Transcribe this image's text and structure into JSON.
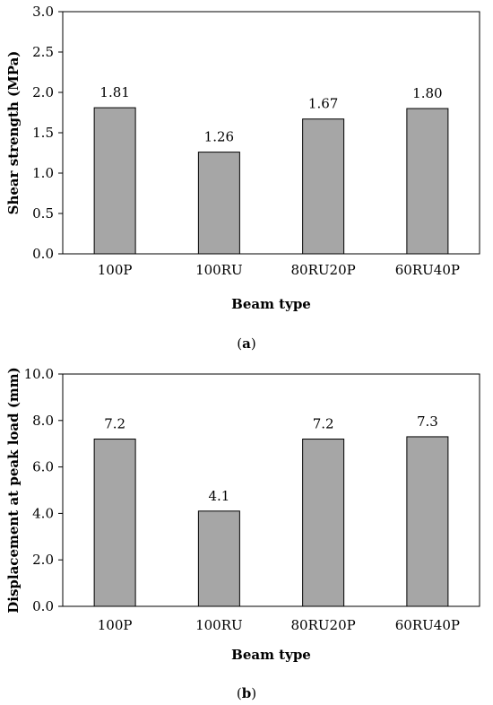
{
  "chart_data": [
    {
      "type": "bar",
      "panel_label": "a",
      "categories": [
        "100P",
        "100RU",
        "80RU20P",
        "60RU40P"
      ],
      "values": [
        1.81,
        1.26,
        1.67,
        1.8
      ],
      "data_labels": [
        "1.81",
        "1.26",
        "1.67",
        "1.80"
      ],
      "xlabel": "Beam type",
      "ylabel": "Shear strength (MPa)",
      "ylim": [
        0,
        3.0
      ],
      "yticks": [
        0.0,
        0.5,
        1.0,
        1.5,
        2.0,
        2.5,
        3.0
      ],
      "ytick_labels": [
        "0.0",
        "0.5",
        "1.0",
        "1.5",
        "2.0",
        "2.5",
        "3.0"
      ],
      "grid": false,
      "bar_color": "#a6a6a6"
    },
    {
      "type": "bar",
      "panel_label": "b",
      "categories": [
        "100P",
        "100RU",
        "80RU20P",
        "60RU40P"
      ],
      "values": [
        7.2,
        4.1,
        7.2,
        7.3
      ],
      "data_labels": [
        "7.2",
        "4.1",
        "7.2",
        "7.3"
      ],
      "xlabel": "Beam type",
      "ylabel": "Displacement at peak load (mm)",
      "ylim": [
        0,
        10.0
      ],
      "yticks": [
        0.0,
        2.0,
        4.0,
        6.0,
        8.0,
        10.0
      ],
      "ytick_labels": [
        "0.0",
        "2.0",
        "4.0",
        "6.0",
        "8.0",
        "10.0"
      ],
      "grid": false,
      "bar_color": "#a6a6a6"
    }
  ]
}
